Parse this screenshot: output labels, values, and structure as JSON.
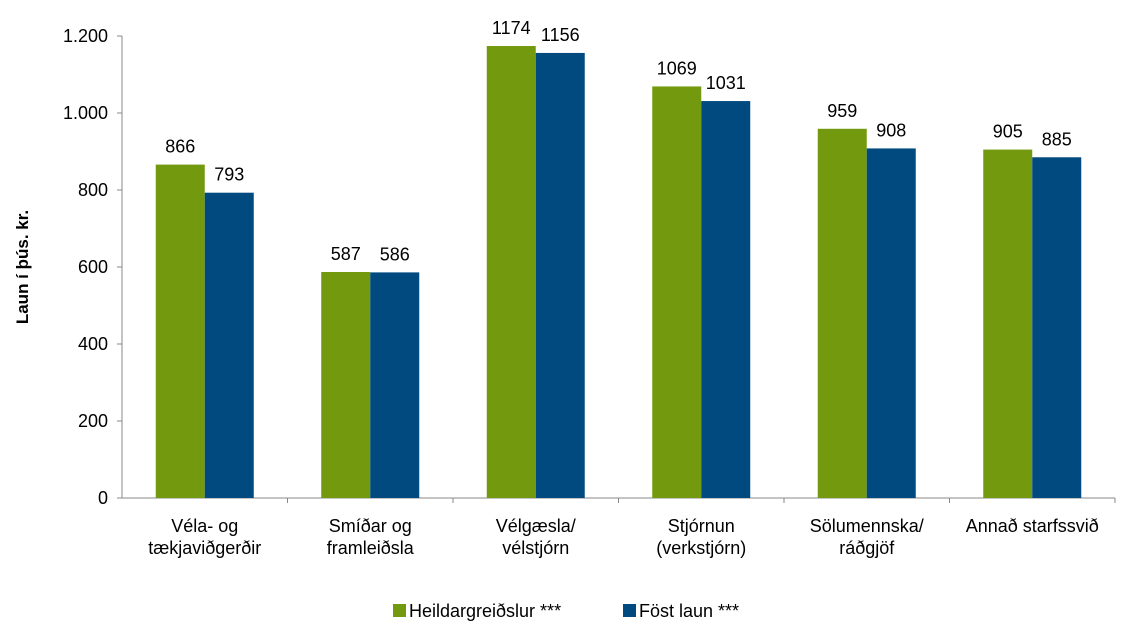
{
  "chart_data": {
    "type": "bar",
    "ylabel": "Laun í þús. kr.",
    "categories": [
      "Véla- og\ntækjaviðgerðir",
      "Smíðar og\nframleiðsla",
      "Vélgæsla/\nvélstjórn",
      "Stjórnun\n(verkstjórn)",
      "Sölumennska/\nráðgjöf",
      "Annað starfssvið"
    ],
    "series": [
      {
        "name": "Heildargreiðslur ***",
        "color": "#739a0f",
        "values": [
          866,
          587,
          1174,
          1069,
          959,
          905
        ]
      },
      {
        "name": "Föst laun ***",
        "color": "#014a80",
        "values": [
          793,
          586,
          1156,
          1031,
          908,
          885
        ]
      }
    ],
    "ylim": [
      0,
      1200
    ],
    "yticks": [
      0,
      200,
      400,
      600,
      800,
      {
        "value": 1000,
        "label": "1.000"
      },
      {
        "value": 1200,
        "label": "1.200"
      }
    ],
    "legend": "bottom"
  }
}
